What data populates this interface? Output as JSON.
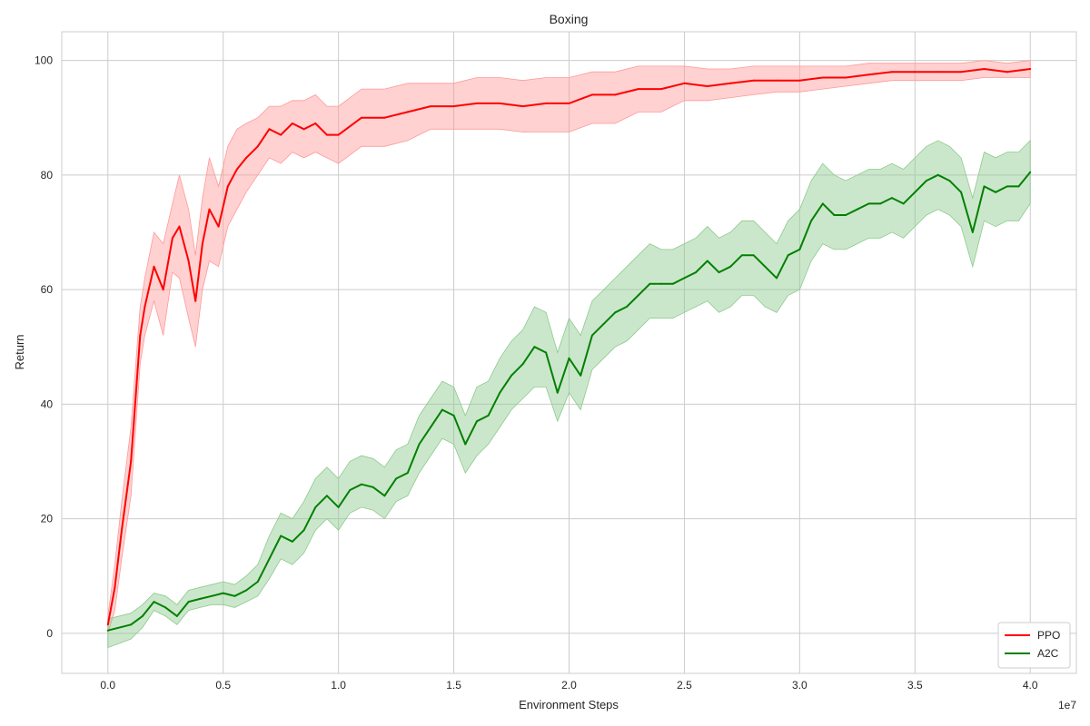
{
  "chart_data": {
    "type": "line",
    "title": "Boxing",
    "xlabel": "Environment Steps",
    "ylabel": "Return",
    "x_offset_label": "1e7",
    "xlim": [
      -0.2,
      4.2
    ],
    "ylim": [
      -7,
      105
    ],
    "x_ticks": [
      0.0,
      0.5,
      1.0,
      1.5,
      2.0,
      2.5,
      3.0,
      3.5,
      4.0
    ],
    "x_tick_labels": [
      "0.0",
      "0.5",
      "1.0",
      "1.5",
      "2.0",
      "2.5",
      "3.0",
      "3.5",
      "4.0"
    ],
    "y_ticks": [
      0,
      20,
      40,
      60,
      80,
      100
    ],
    "y_tick_labels": [
      "0",
      "20",
      "40",
      "60",
      "80",
      "100"
    ],
    "grid": true,
    "legend_position": "bottom-right",
    "series": [
      {
        "name": "PPO",
        "color": "#ff0000",
        "band_color": "#ff9999",
        "x": [
          0.0,
          0.03,
          0.06,
          0.1,
          0.14,
          0.16,
          0.2,
          0.24,
          0.28,
          0.31,
          0.35,
          0.38,
          0.41,
          0.44,
          0.48,
          0.52,
          0.56,
          0.6,
          0.65,
          0.7,
          0.75,
          0.8,
          0.85,
          0.9,
          0.95,
          1.0,
          1.1,
          1.2,
          1.3,
          1.4,
          1.5,
          1.6,
          1.7,
          1.8,
          1.9,
          2.0,
          2.1,
          2.2,
          2.3,
          2.4,
          2.5,
          2.6,
          2.7,
          2.8,
          2.9,
          3.0,
          3.1,
          3.2,
          3.3,
          3.4,
          3.5,
          3.6,
          3.7,
          3.8,
          3.9,
          4.0
        ],
        "mean": [
          1.5,
          8,
          18,
          30,
          52,
          57,
          64,
          60,
          69,
          71,
          65,
          58,
          68,
          74,
          71,
          78,
          81,
          83,
          85,
          88,
          87,
          89,
          88,
          89,
          87,
          87,
          90,
          90,
          91,
          92,
          92,
          92.5,
          92.5,
          92,
          92.5,
          92.5,
          94,
          94,
          95,
          95,
          96,
          95.5,
          96,
          96.5,
          96.5,
          96.5,
          97,
          97,
          97.5,
          98,
          98,
          98,
          98,
          98.5,
          98,
          98.5
        ],
        "lower": [
          0,
          4,
          13,
          24,
          47,
          52,
          58,
          52,
          63,
          62,
          55,
          50,
          60,
          65,
          64,
          71,
          74,
          77,
          80,
          83,
          82,
          84,
          83,
          84,
          83,
          82,
          85,
          85,
          86,
          88,
          88,
          88,
          88,
          87.5,
          87.5,
          87.5,
          89,
          89,
          91,
          91,
          93,
          93,
          93.5,
          94,
          94.5,
          94.5,
          95,
          95.5,
          96,
          96.5,
          96.5,
          96.5,
          96.5,
          97,
          97,
          97
        ],
        "upper": [
          3,
          12,
          23,
          36,
          57,
          62,
          70,
          68,
          75,
          80,
          74,
          66,
          76,
          83,
          78,
          85,
          88,
          89,
          90,
          92,
          92,
          93,
          93,
          94,
          92,
          92,
          95,
          95,
          96,
          96,
          96,
          97,
          97,
          96.5,
          97,
          97,
          98,
          98,
          99,
          99,
          99,
          98.5,
          98.5,
          99,
          99,
          99,
          99,
          99,
          99.5,
          99.5,
          99.5,
          99.5,
          99.5,
          100,
          99.5,
          100
        ]
      },
      {
        "name": "A2C",
        "color": "#008000",
        "band_color": "#8cc98c",
        "x": [
          0.0,
          0.1,
          0.15,
          0.2,
          0.25,
          0.3,
          0.35,
          0.4,
          0.45,
          0.5,
          0.55,
          0.6,
          0.65,
          0.7,
          0.75,
          0.8,
          0.85,
          0.9,
          0.95,
          1.0,
          1.05,
          1.1,
          1.15,
          1.2,
          1.25,
          1.3,
          1.35,
          1.4,
          1.45,
          1.5,
          1.55,
          1.6,
          1.65,
          1.7,
          1.75,
          1.8,
          1.85,
          1.9,
          1.95,
          2.0,
          2.05,
          2.1,
          2.15,
          2.2,
          2.25,
          2.3,
          2.35,
          2.4,
          2.45,
          2.5,
          2.55,
          2.6,
          2.65,
          2.7,
          2.75,
          2.8,
          2.85,
          2.9,
          2.95,
          3.0,
          3.05,
          3.1,
          3.15,
          3.2,
          3.25,
          3.3,
          3.35,
          3.4,
          3.45,
          3.5,
          3.55,
          3.6,
          3.65,
          3.7,
          3.75,
          3.8,
          3.85,
          3.9,
          3.95,
          4.0
        ],
        "mean": [
          0.5,
          1.5,
          3,
          5.5,
          4.5,
          3,
          5.5,
          6,
          6.5,
          7,
          6.5,
          7.5,
          9,
          13,
          17,
          16,
          18,
          22,
          24,
          22,
          25,
          26,
          25.5,
          24,
          27,
          28,
          33,
          36,
          39,
          38,
          33,
          37,
          38,
          42,
          45,
          47,
          50,
          49,
          42,
          48,
          45,
          52,
          54,
          56,
          57,
          59,
          61,
          61,
          61,
          62,
          63,
          65,
          63,
          64,
          66,
          66,
          64,
          62,
          66,
          67,
          72,
          75,
          73,
          73,
          74,
          75,
          75,
          76,
          75,
          77,
          79,
          80,
          79,
          77,
          70,
          78,
          77,
          78,
          78,
          80.5
        ],
        "lower": [
          -2.5,
          -1,
          1,
          4,
          3,
          1.5,
          4,
          4.5,
          5,
          5,
          4.5,
          5.5,
          6.5,
          9.5,
          13,
          12,
          14,
          18,
          20,
          18,
          21,
          22,
          21.5,
          20,
          23,
          24,
          28,
          31,
          34,
          33,
          28,
          31,
          33,
          36,
          39,
          41,
          43,
          43,
          37,
          42,
          39,
          46,
          48,
          50,
          51,
          53,
          55,
          55,
          55,
          56,
          57,
          58,
          56,
          57,
          59,
          59,
          57,
          56,
          59,
          60,
          65,
          68,
          67,
          67,
          68,
          69,
          69,
          70,
          69,
          71,
          73,
          74,
          73,
          71,
          64,
          72,
          71,
          72,
          72,
          75
        ],
        "upper": [
          2.5,
          3.5,
          5,
          7,
          6.5,
          5,
          7.5,
          8,
          8.5,
          9,
          8.5,
          10,
          12,
          17,
          21,
          20,
          23,
          27,
          29,
          27,
          30,
          31,
          30.5,
          29,
          32,
          33,
          38,
          41,
          44,
          43,
          38,
          43,
          44,
          48,
          51,
          53,
          57,
          56,
          49,
          55,
          52,
          58,
          60,
          62,
          64,
          66,
          68,
          67,
          67,
          68,
          69,
          71,
          69,
          70,
          72,
          72,
          70,
          68,
          72,
          74,
          79,
          82,
          80,
          79,
          80,
          81,
          81,
          82,
          81,
          83,
          85,
          86,
          85,
          83,
          76,
          84,
          83,
          84,
          84,
          86
        ]
      }
    ]
  }
}
